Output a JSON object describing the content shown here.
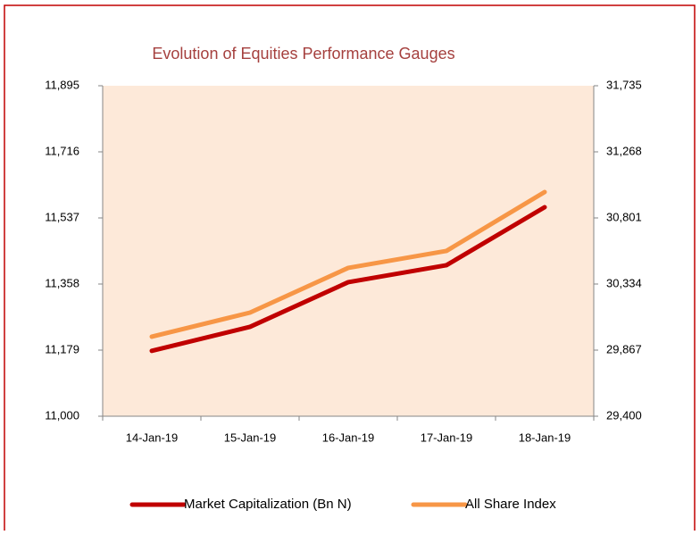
{
  "chart_data": {
    "type": "line",
    "title": "Evolution of Equities Performance Gauges",
    "categories": [
      "14-Jan-19",
      "15-Jan-19",
      "16-Jan-19",
      "17-Jan-19",
      "18-Jan-19"
    ],
    "series": [
      {
        "name": "Market Capitalization (Bn N)",
        "color": "#c00000",
        "values": [
          11177,
          11242,
          11363,
          11409,
          11566
        ]
      },
      {
        "name": "All Share Index",
        "color": "#f79646",
        "axis": "y2",
        "values": [
          29962,
          30132,
          30448,
          30568,
          30984
        ]
      }
    ],
    "ylim": [
      11000,
      11895
    ],
    "yticks": [
      {
        "value": 11000,
        "label": "11,000"
      },
      {
        "value": 11179,
        "label": "11,179"
      },
      {
        "value": 11358,
        "label": "11,358"
      },
      {
        "value": 11537,
        "label": "11,537"
      },
      {
        "value": 11716,
        "label": "11,716"
      },
      {
        "value": 11895,
        "label": "11,895"
      }
    ],
    "y2lim": [
      29400,
      31735
    ],
    "y2ticks": [
      {
        "value": 29400,
        "label": "29,400"
      },
      {
        "value": 29867,
        "label": "29,867"
      },
      {
        "value": 30334,
        "label": "30,334"
      },
      {
        "value": 30801,
        "label": "30,801"
      },
      {
        "value": 31268,
        "label": "31,268"
      },
      {
        "value": 31735,
        "label": "31,735"
      }
    ],
    "grid": false,
    "legend": "bottom",
    "plot_background": "#fde9d9"
  }
}
